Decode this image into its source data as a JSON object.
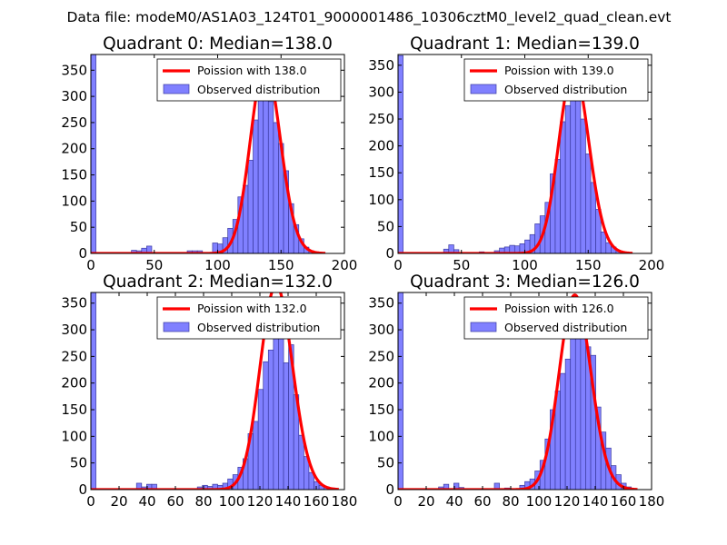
{
  "suptitle": "Data file: modeM0/AS1A03_124T01_9000001486_10306cztM0_level2_quad_clean.evt",
  "colors": {
    "bar_fill": "#8080ff",
    "bar_edge": "#3a3aa0",
    "curve": "#ff0000"
  },
  "chart_data": [
    {
      "type": "bar",
      "title": "Quadrant 0: Median=138.0",
      "xlim": [
        0,
        200
      ],
      "ylim": [
        0,
        380
      ],
      "xticks": [
        0,
        50,
        100,
        150,
        200
      ],
      "xtick_labels": [
        "0",
        "50",
        "100",
        "150",
        "200"
      ],
      "yticks": [
        0,
        50,
        100,
        150,
        200,
        250,
        300,
        350
      ],
      "ytick_labels": [
        "0",
        "50",
        "100",
        "150",
        "200",
        "250",
        "300",
        "350"
      ],
      "bin_width": 4,
      "bars": [
        {
          "x": 0,
          "h": 380
        },
        {
          "x": 32,
          "h": 6
        },
        {
          "x": 36,
          "h": 5
        },
        {
          "x": 40,
          "h": 10
        },
        {
          "x": 44,
          "h": 14
        },
        {
          "x": 76,
          "h": 5
        },
        {
          "x": 80,
          "h": 5
        },
        {
          "x": 84,
          "h": 5
        },
        {
          "x": 96,
          "h": 20
        },
        {
          "x": 100,
          "h": 18
        },
        {
          "x": 104,
          "h": 30
        },
        {
          "x": 108,
          "h": 48
        },
        {
          "x": 112,
          "h": 65
        },
        {
          "x": 116,
          "h": 108
        },
        {
          "x": 120,
          "h": 130
        },
        {
          "x": 124,
          "h": 178
        },
        {
          "x": 128,
          "h": 255
        },
        {
          "x": 132,
          "h": 295
        },
        {
          "x": 136,
          "h": 335
        },
        {
          "x": 140,
          "h": 290
        },
        {
          "x": 144,
          "h": 250
        },
        {
          "x": 148,
          "h": 210
        },
        {
          "x": 152,
          "h": 158
        },
        {
          "x": 156,
          "h": 95
        },
        {
          "x": 160,
          "h": 55
        },
        {
          "x": 164,
          "h": 28
        },
        {
          "x": 168,
          "h": 12
        },
        {
          "x": 172,
          "h": 5
        },
        {
          "x": 176,
          "h": 3
        },
        {
          "x": 180,
          "h": 2
        }
      ],
      "curve": {
        "mu": 138.0,
        "xmin": 0,
        "xmax": 185
      },
      "legend": {
        "position": "upper-right",
        "entries": [
          "Poission with 138.0",
          "Observed distribution"
        ]
      }
    },
    {
      "type": "bar",
      "title": "Quadrant 1: Median=139.0",
      "xlim": [
        0,
        200
      ],
      "ylim": [
        0,
        370
      ],
      "xticks": [
        0,
        50,
        100,
        150,
        200
      ],
      "xtick_labels": [
        "0",
        "50",
        "100",
        "150",
        "200"
      ],
      "yticks": [
        0,
        50,
        100,
        150,
        200,
        250,
        300,
        350
      ],
      "ytick_labels": [
        "0",
        "50",
        "100",
        "150",
        "200",
        "250",
        "300",
        "350"
      ],
      "bin_width": 4,
      "bars": [
        {
          "x": 0,
          "h": 368
        },
        {
          "x": 36,
          "h": 8
        },
        {
          "x": 40,
          "h": 16
        },
        {
          "x": 44,
          "h": 7
        },
        {
          "x": 64,
          "h": 3
        },
        {
          "x": 76,
          "h": 5
        },
        {
          "x": 80,
          "h": 10
        },
        {
          "x": 84,
          "h": 12
        },
        {
          "x": 88,
          "h": 15
        },
        {
          "x": 92,
          "h": 14
        },
        {
          "x": 96,
          "h": 18
        },
        {
          "x": 100,
          "h": 25
        },
        {
          "x": 104,
          "h": 35
        },
        {
          "x": 108,
          "h": 55
        },
        {
          "x": 112,
          "h": 70
        },
        {
          "x": 116,
          "h": 95
        },
        {
          "x": 120,
          "h": 148
        },
        {
          "x": 124,
          "h": 175
        },
        {
          "x": 128,
          "h": 245
        },
        {
          "x": 132,
          "h": 275
        },
        {
          "x": 136,
          "h": 318
        },
        {
          "x": 140,
          "h": 290
        },
        {
          "x": 144,
          "h": 250
        },
        {
          "x": 148,
          "h": 185
        },
        {
          "x": 152,
          "h": 132
        },
        {
          "x": 156,
          "h": 82
        },
        {
          "x": 160,
          "h": 40
        },
        {
          "x": 164,
          "h": 20
        },
        {
          "x": 168,
          "h": 12
        },
        {
          "x": 172,
          "h": 5
        }
      ],
      "curve": {
        "mu": 139.0,
        "xmin": 0,
        "xmax": 185
      },
      "legend": {
        "position": "upper-right",
        "entries": [
          "Poission with 139.0",
          "Observed distribution"
        ]
      }
    },
    {
      "type": "bar",
      "title": "Quadrant 2: Median=132.0",
      "xlim": [
        0,
        180
      ],
      "ylim": [
        0,
        370
      ],
      "xticks": [
        0,
        20,
        40,
        60,
        80,
        100,
        120,
        140,
        160,
        180
      ],
      "xtick_labels": [
        "0",
        "20",
        "40",
        "60",
        "80",
        "100",
        "120",
        "140",
        "160",
        "180"
      ],
      "yticks": [
        0,
        50,
        100,
        150,
        200,
        250,
        300,
        350
      ],
      "ytick_labels": [
        "0",
        "50",
        "100",
        "150",
        "200",
        "250",
        "300",
        "350"
      ],
      "bin_width": 3.6,
      "bars": [
        {
          "x": 0,
          "h": 370
        },
        {
          "x": 32.4,
          "h": 12
        },
        {
          "x": 36,
          "h": 5
        },
        {
          "x": 39.6,
          "h": 10
        },
        {
          "x": 43.2,
          "h": 10
        },
        {
          "x": 75.6,
          "h": 5
        },
        {
          "x": 79.2,
          "h": 8
        },
        {
          "x": 82.8,
          "h": 6
        },
        {
          "x": 86.4,
          "h": 10
        },
        {
          "x": 90,
          "h": 8
        },
        {
          "x": 93.6,
          "h": 12
        },
        {
          "x": 97.2,
          "h": 20
        },
        {
          "x": 100.8,
          "h": 28
        },
        {
          "x": 104.4,
          "h": 42
        },
        {
          "x": 108,
          "h": 58
        },
        {
          "x": 111.6,
          "h": 105
        },
        {
          "x": 115.2,
          "h": 128
        },
        {
          "x": 118.8,
          "h": 188
        },
        {
          "x": 122.4,
          "h": 240
        },
        {
          "x": 126,
          "h": 262
        },
        {
          "x": 129.6,
          "h": 305
        },
        {
          "x": 133.2,
          "h": 355
        },
        {
          "x": 136.8,
          "h": 238
        },
        {
          "x": 140.4,
          "h": 272
        },
        {
          "x": 144,
          "h": 178
        },
        {
          "x": 147.6,
          "h": 102
        },
        {
          "x": 151.2,
          "h": 62
        },
        {
          "x": 154.8,
          "h": 32
        },
        {
          "x": 158.4,
          "h": 15
        },
        {
          "x": 162,
          "h": 8
        },
        {
          "x": 165.6,
          "h": 5
        },
        {
          "x": 169.2,
          "h": 3
        }
      ],
      "curve": {
        "mu": 132.0,
        "xmin": 0,
        "xmax": 176
      },
      "legend": {
        "position": "upper-right",
        "entries": [
          "Poission with 132.0",
          "Observed distribution"
        ]
      }
    },
    {
      "type": "bar",
      "title": "Quadrant 3: Median=126.0",
      "xlim": [
        0,
        180
      ],
      "ylim": [
        0,
        370
      ],
      "xticks": [
        0,
        20,
        40,
        60,
        80,
        100,
        120,
        140,
        160,
        180
      ],
      "xtick_labels": [
        "0",
        "20",
        "40",
        "60",
        "80",
        "100",
        "120",
        "140",
        "160",
        "180"
      ],
      "yticks": [
        0,
        50,
        100,
        150,
        200,
        250,
        300,
        350
      ],
      "ytick_labels": [
        "0",
        "50",
        "100",
        "150",
        "200",
        "250",
        "300",
        "350"
      ],
      "bin_width": 3.6,
      "bars": [
        {
          "x": 0,
          "h": 370
        },
        {
          "x": 28.8,
          "h": 5
        },
        {
          "x": 32.4,
          "h": 10
        },
        {
          "x": 39.6,
          "h": 12
        },
        {
          "x": 43.2,
          "h": 4
        },
        {
          "x": 68.4,
          "h": 12
        },
        {
          "x": 75.6,
          "h": 3
        },
        {
          "x": 86.4,
          "h": 8
        },
        {
          "x": 90,
          "h": 15
        },
        {
          "x": 93.6,
          "h": 20
        },
        {
          "x": 97.2,
          "h": 35
        },
        {
          "x": 100.8,
          "h": 55
        },
        {
          "x": 104.4,
          "h": 95
        },
        {
          "x": 108,
          "h": 150
        },
        {
          "x": 111.6,
          "h": 185
        },
        {
          "x": 115.2,
          "h": 218
        },
        {
          "x": 118.8,
          "h": 245
        },
        {
          "x": 122.4,
          "h": 302
        },
        {
          "x": 126,
          "h": 338
        },
        {
          "x": 129.6,
          "h": 305
        },
        {
          "x": 133.2,
          "h": 268
        },
        {
          "x": 136.8,
          "h": 252
        },
        {
          "x": 140.4,
          "h": 155
        },
        {
          "x": 144,
          "h": 108
        },
        {
          "x": 147.6,
          "h": 78
        },
        {
          "x": 151.2,
          "h": 45
        },
        {
          "x": 154.8,
          "h": 28
        },
        {
          "x": 158.4,
          "h": 12
        },
        {
          "x": 162,
          "h": 5
        }
      ],
      "curve": {
        "mu": 126.0,
        "xmin": 0,
        "xmax": 170
      },
      "legend": {
        "position": "upper-right",
        "entries": [
          "Poission with 126.0",
          "Observed distribution"
        ]
      }
    }
  ]
}
